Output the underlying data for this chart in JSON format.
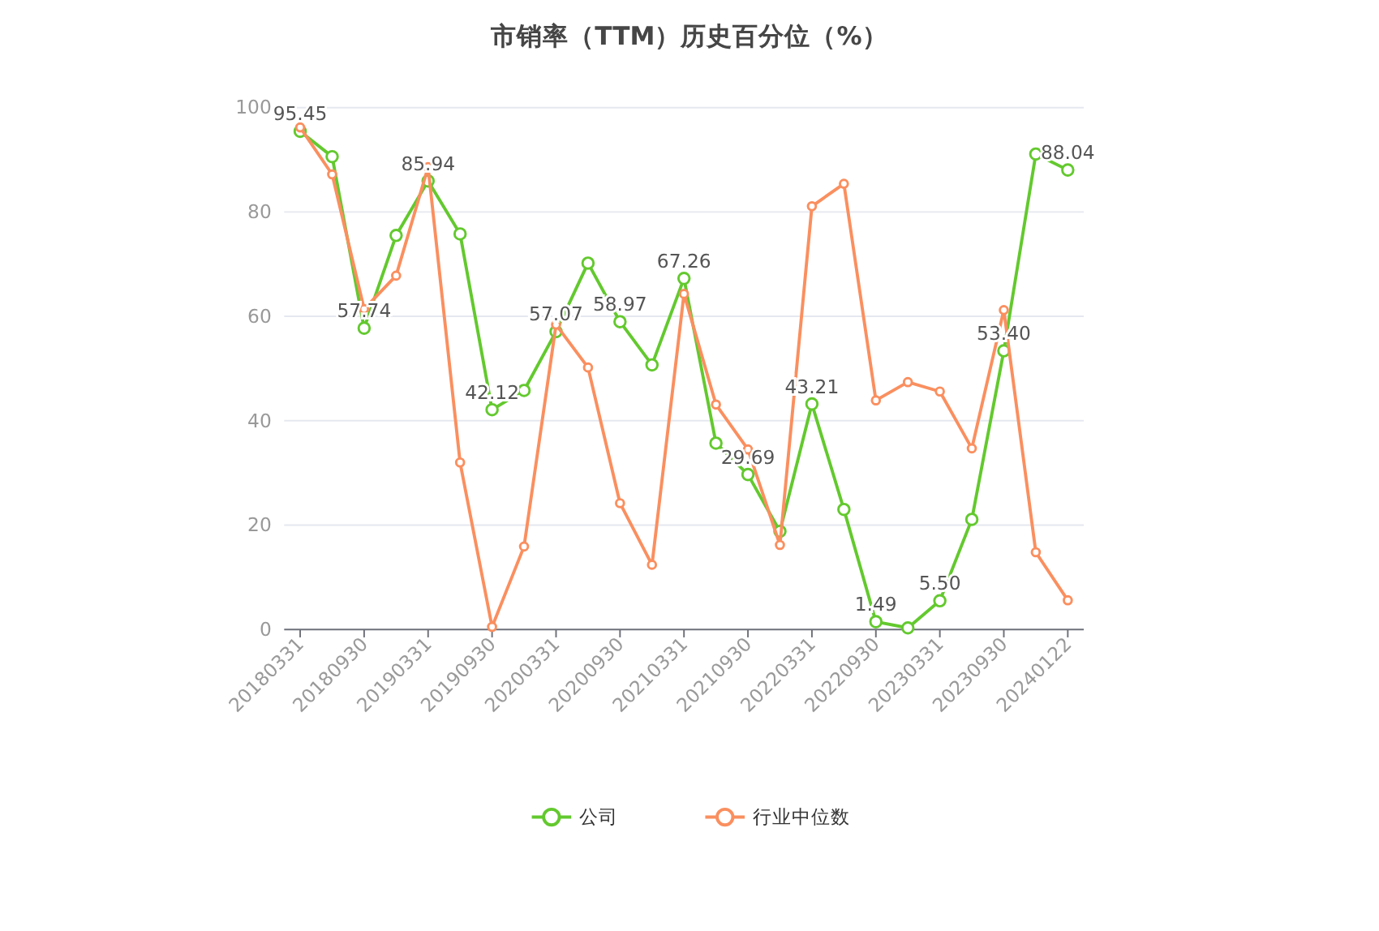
{
  "chart_data": {
    "type": "line",
    "title": "市销率（TTM）历史百分位（%）",
    "categories": [
      "20180331",
      null,
      "20180930",
      null,
      "20190331",
      null,
      "20190930",
      null,
      "20200331",
      null,
      "20200930",
      null,
      "20210331",
      null,
      "20210930",
      null,
      "20220331",
      null,
      "20220930",
      null,
      "20230331",
      null,
      "20230930",
      null,
      "20240122"
    ],
    "series": [
      {
        "name": "公司",
        "color": "#63c92e",
        "values": [
          95.45,
          90.6,
          57.74,
          75.5,
          85.94,
          75.8,
          42.12,
          45.8,
          57.07,
          70.2,
          58.97,
          50.7,
          67.26,
          35.7,
          29.69,
          18.8,
          43.21,
          23,
          1.49,
          0.3,
          5.5,
          21.1,
          53.4,
          91.1,
          88.04
        ],
        "value_labels": [
          "95.45",
          null,
          "57.74",
          null,
          "85.94",
          null,
          "42.12",
          null,
          "57.07",
          null,
          "58.97",
          null,
          "67.26",
          null,
          "29.69",
          null,
          "43.21",
          null,
          "1.49",
          null,
          "5.50",
          null,
          "53.40",
          null,
          "88.04"
        ]
      },
      {
        "name": "行业中位数",
        "color": "#fa8f5f",
        "values": [
          96.2,
          87.2,
          61.4,
          67.8,
          88.6,
          32,
          0.5,
          15.9,
          58.4,
          50.2,
          24.2,
          12.4,
          64.3,
          43.1,
          34.5,
          16.2,
          81.1,
          85.4,
          43.9,
          47.4,
          45.6,
          34.7,
          61.2,
          14.8,
          5.6
        ]
      }
    ],
    "ylim": [
      0,
      100
    ],
    "yticks": [
      0,
      20,
      40,
      60,
      80,
      100
    ],
    "grid": "y",
    "legend": "bottom",
    "marker": "circle",
    "line_style": "solid"
  }
}
